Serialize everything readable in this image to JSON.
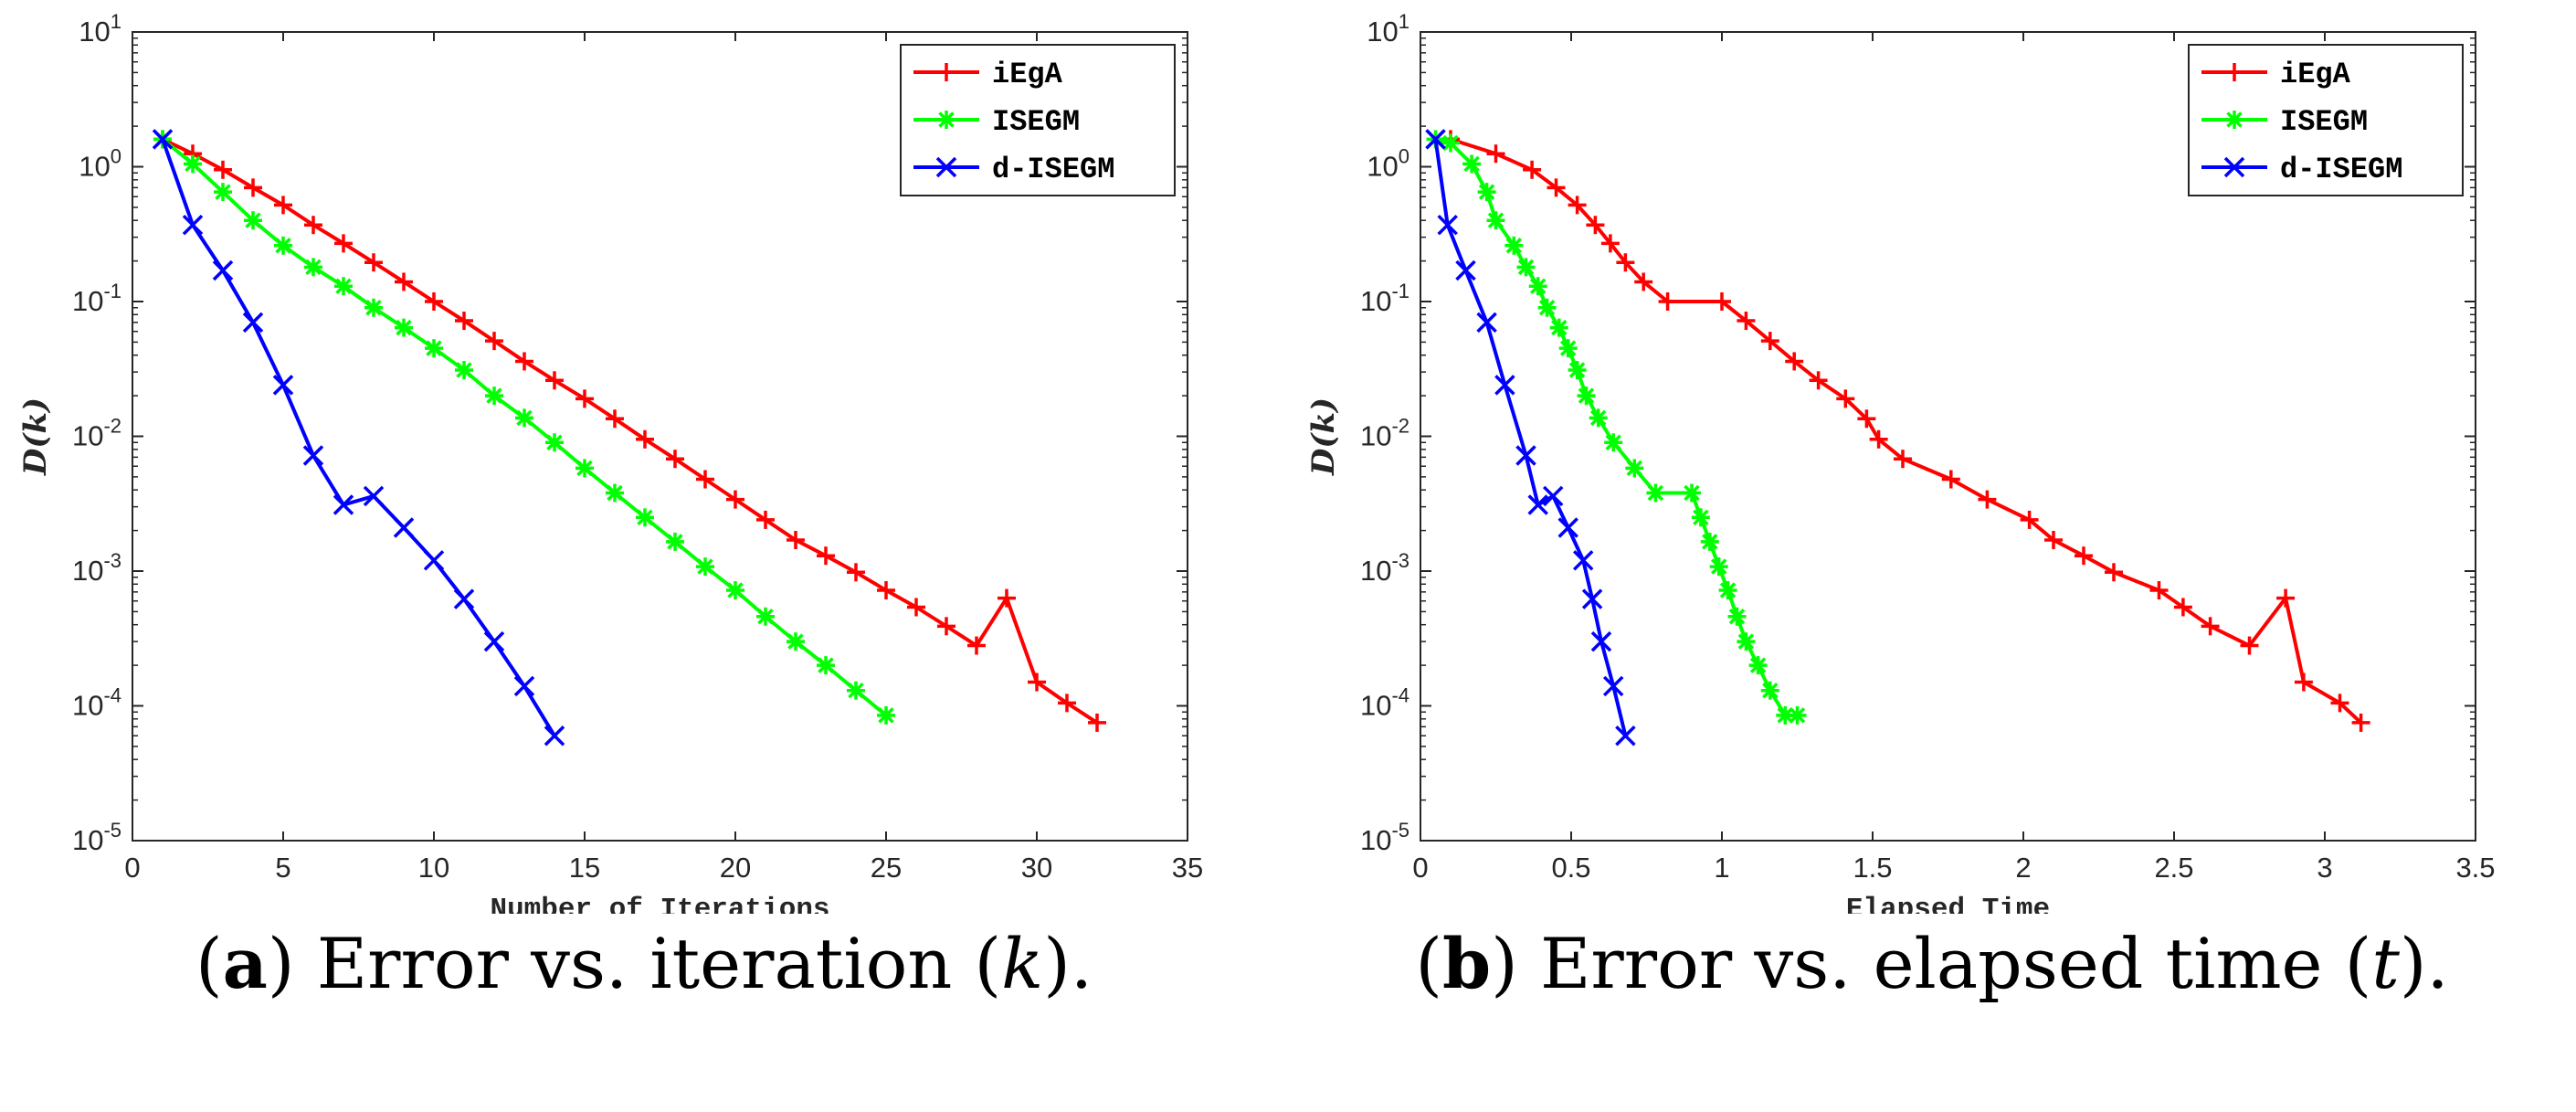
{
  "chart_data": [
    {
      "type": "line",
      "id": "a",
      "yscale": "log",
      "xlabel": "Number of Iterations",
      "ylabel": "D(k)",
      "xlim": [
        0,
        35
      ],
      "ylim_exp": [
        -5,
        1
      ],
      "xticks": [
        "0",
        "5",
        "10",
        "15",
        "20",
        "25",
        "30",
        "35"
      ],
      "xtick_values": [
        0,
        5,
        10,
        15,
        20,
        25,
        30,
        35
      ],
      "yticks": [
        {
          "base": "10",
          "exp": "1"
        },
        {
          "base": "10",
          "exp": "0"
        },
        {
          "base": "10",
          "exp": "-1"
        },
        {
          "base": "10",
          "exp": "-2"
        },
        {
          "base": "10",
          "exp": "-3"
        },
        {
          "base": "10",
          "exp": "-4"
        },
        {
          "base": "10",
          "exp": "-5"
        }
      ],
      "legend_position": "top-right",
      "series": [
        {
          "name": "iEgA",
          "color": "#ff0000",
          "marker": "plus",
          "x": [
            1,
            2,
            3,
            4,
            5,
            6,
            7,
            8,
            9,
            10,
            11,
            12,
            13,
            14,
            15,
            16,
            17,
            18,
            19,
            20,
            21,
            22,
            23,
            24,
            25,
            26,
            27,
            28,
            29,
            30,
            31,
            32
          ],
          "y": [
            1.6,
            1.25,
            0.95,
            0.7,
            0.52,
            0.37,
            0.27,
            0.195,
            0.14,
            0.1,
            0.072,
            0.051,
            0.036,
            0.026,
            0.019,
            0.0135,
            0.0095,
            0.0068,
            0.0048,
            0.0034,
            0.0024,
            0.0017,
            0.0013,
            0.00098,
            0.00072,
            0.00054,
            0.00039,
            0.00028,
            0.00063,
            0.00015,
            0.000105,
            7.5e-05
          ]
        },
        {
          "name": "ISEGM",
          "color": "#00ff00",
          "marker": "star",
          "x": [
            1,
            2,
            3,
            4,
            5,
            6,
            7,
            8,
            9,
            10,
            11,
            12,
            13,
            14,
            15,
            16,
            17,
            18,
            19,
            20,
            21,
            22,
            23,
            24,
            25
          ],
          "y": [
            1.6,
            1.05,
            0.65,
            0.4,
            0.26,
            0.18,
            0.13,
            0.09,
            0.064,
            0.045,
            0.031,
            0.02,
            0.0137,
            0.009,
            0.0058,
            0.0038,
            0.0025,
            0.00165,
            0.00108,
            0.00072,
            0.00046,
            0.0003,
            0.0002,
            0.00013,
            8.5e-05
          ]
        },
        {
          "name": "d-ISEGM",
          "color": "#0000ff",
          "marker": "cross",
          "x": [
            1,
            2,
            3,
            4,
            5,
            6,
            7,
            8,
            9,
            10,
            11,
            12,
            13,
            14
          ],
          "y": [
            1.6,
            0.37,
            0.17,
            0.07,
            0.024,
            0.0072,
            0.0031,
            0.0036,
            0.0021,
            0.0012,
            0.00062,
            0.0003,
            0.00014,
            6e-05
          ]
        }
      ],
      "caption": {
        "letter": "a",
        "text": "Error vs. iteration (",
        "var": "k",
        "end": ")."
      }
    },
    {
      "type": "line",
      "id": "b",
      "yscale": "log",
      "xlabel": "Elapsed Time",
      "ylabel": "D(k)",
      "xlim": [
        0,
        3.5
      ],
      "ylim_exp": [
        -5,
        1
      ],
      "xticks": [
        "0",
        "0.5",
        "1",
        "1.5",
        "2",
        "2.5",
        "3",
        "3.5"
      ],
      "xtick_values": [
        0,
        0.5,
        1,
        1.5,
        2,
        2.5,
        3,
        3.5
      ],
      "yticks": [
        {
          "base": "10",
          "exp": "1"
        },
        {
          "base": "10",
          "exp": "0"
        },
        {
          "base": "10",
          "exp": "-1"
        },
        {
          "base": "10",
          "exp": "-2"
        },
        {
          "base": "10",
          "exp": "-3"
        },
        {
          "base": "10",
          "exp": "-4"
        },
        {
          "base": "10",
          "exp": "-5"
        }
      ],
      "legend_position": "top-right",
      "series": [
        {
          "name": "iEgA",
          "color": "#ff0000",
          "marker": "plus",
          "x": [
            0.1,
            0.25,
            0.37,
            0.45,
            0.52,
            0.58,
            0.63,
            0.68,
            0.74,
            0.82,
            1.0,
            1.08,
            1.16,
            1.24,
            1.32,
            1.41,
            1.48,
            1.52,
            1.6,
            1.76,
            1.88,
            2.02,
            2.1,
            2.2,
            2.3,
            2.45,
            2.53,
            2.62,
            2.75,
            2.87,
            2.93,
            3.05,
            3.12
          ],
          "y": [
            1.6,
            1.25,
            0.95,
            0.7,
            0.52,
            0.37,
            0.27,
            0.195,
            0.14,
            0.1,
            0.1,
            0.072,
            0.051,
            0.036,
            0.026,
            0.019,
            0.0135,
            0.0095,
            0.0068,
            0.0048,
            0.0034,
            0.0024,
            0.0017,
            0.0013,
            0.00098,
            0.00072,
            0.00054,
            0.00039,
            0.00028,
            0.00063,
            0.00015,
            0.000105,
            7.5e-05
          ]
        },
        {
          "name": "ISEGM",
          "color": "#00ff00",
          "marker": "star",
          "x": [
            0.05,
            0.1,
            0.17,
            0.22,
            0.25,
            0.31,
            0.35,
            0.39,
            0.42,
            0.46,
            0.49,
            0.52,
            0.55,
            0.59,
            0.64,
            0.71,
            0.78,
            0.9,
            0.93,
            0.96,
            0.99,
            1.02,
            1.05,
            1.08,
            1.12,
            1.16,
            1.21,
            1.25
          ],
          "y": [
            1.6,
            1.5,
            1.05,
            0.65,
            0.4,
            0.26,
            0.18,
            0.13,
            0.09,
            0.064,
            0.045,
            0.031,
            0.02,
            0.0137,
            0.009,
            0.0058,
            0.0038,
            0.0038,
            0.0025,
            0.00165,
            0.00108,
            0.00072,
            0.00046,
            0.0003,
            0.0002,
            0.00013,
            8.5e-05,
            8.5e-05
          ]
        },
        {
          "name": "d-ISEGM",
          "color": "#0000ff",
          "marker": "cross",
          "x": [
            0.05,
            0.09,
            0.15,
            0.22,
            0.28,
            0.35,
            0.39,
            0.44,
            0.49,
            0.54,
            0.57,
            0.6,
            0.64,
            0.68
          ],
          "y": [
            1.6,
            0.37,
            0.17,
            0.07,
            0.024,
            0.0072,
            0.0031,
            0.0036,
            0.0021,
            0.0012,
            0.00062,
            0.0003,
            0.00014,
            6e-05
          ]
        }
      ],
      "caption": {
        "letter": "b",
        "text": "Error vs. elapsed time (",
        "var": "t",
        "end": ")."
      }
    }
  ]
}
